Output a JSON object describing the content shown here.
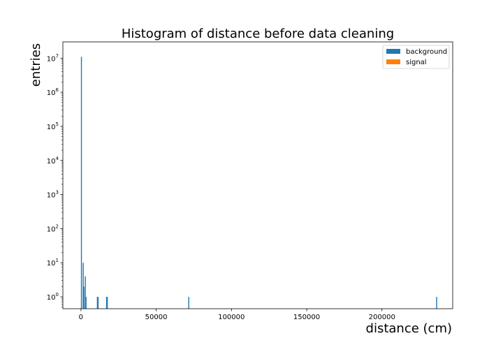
{
  "chart_data": {
    "type": "bar",
    "title": "Histogram of distance before data cleaning",
    "xlabel": "distance (cm)",
    "ylabel": "entries",
    "xlim": [
      -12000,
      247000
    ],
    "ylim_log": [
      0.45,
      30000000
    ],
    "log_y": true,
    "grid": false,
    "legend_position": "top-right",
    "x_ticks": [
      {
        "value": 0,
        "label": "0"
      },
      {
        "value": 50000,
        "label": "50000"
      },
      {
        "value": 100000,
        "label": "100000"
      },
      {
        "value": 150000,
        "label": "150000"
      },
      {
        "value": 200000,
        "label": "200000"
      }
    ],
    "y_ticks": [
      {
        "value": 1,
        "base": "10",
        "exp": "0"
      },
      {
        "value": 10,
        "base": "10",
        "exp": "1"
      },
      {
        "value": 100,
        "base": "10",
        "exp": "2"
      },
      {
        "value": 1000,
        "base": "10",
        "exp": "3"
      },
      {
        "value": 10000,
        "base": "10",
        "exp": "4"
      },
      {
        "value": 100000,
        "base": "10",
        "exp": "5"
      },
      {
        "value": 1000000,
        "base": "10",
        "exp": "6"
      },
      {
        "value": 10000000,
        "base": "10",
        "exp": "7"
      }
    ],
    "series": [
      {
        "name": "background",
        "color": "#1f77b4",
        "bins": [
          {
            "x": 0,
            "count": 11000000
          },
          {
            "x": 1180,
            "count": 10
          },
          {
            "x": 1650,
            "count": 2
          },
          {
            "x": 2590,
            "count": 4
          },
          {
            "x": 3060,
            "count": 1
          },
          {
            "x": 10600,
            "count": 1
          },
          {
            "x": 11070,
            "count": 1
          },
          {
            "x": 16720,
            "count": 1
          },
          {
            "x": 17190,
            "count": 1
          },
          {
            "x": 71300,
            "count": 1
          },
          {
            "x": 236000,
            "count": 1
          }
        ],
        "bin_width": 470
      },
      {
        "name": "signal",
        "color": "#ff7f0e",
        "bins": []
      }
    ]
  }
}
